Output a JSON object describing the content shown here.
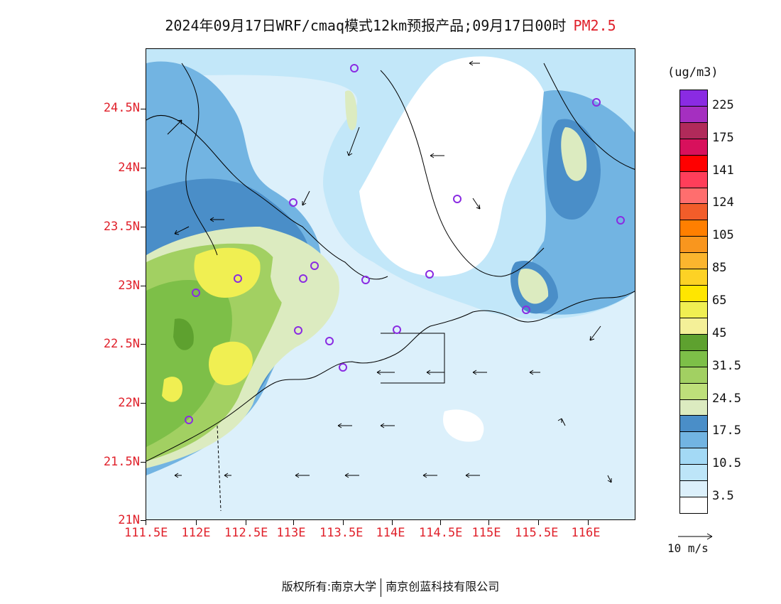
{
  "header": {
    "title": "2024年09月17日WRF/cmaq模式12km预报产品;09月17日00时",
    "pollutant": "PM2.5"
  },
  "axes": {
    "lat_ticks": [
      "24.5N",
      "24N",
      "23.5N",
      "23N",
      "22.5N",
      "22N",
      "21.5N",
      "21N"
    ],
    "lon_ticks": [
      "111.5E",
      "112E",
      "112.5E",
      "113E",
      "113.5E",
      "114E",
      "114.5E",
      "115E",
      "115.5E",
      "116E"
    ]
  },
  "colorbar": {
    "units": "(ug/m3)",
    "colors": [
      "#ffffff",
      "#dcf0fb",
      "#bde5f8",
      "#a3d9f5",
      "#72b4e2",
      "#4a8ec8",
      "#dcebc0",
      "#bedf7a",
      "#a2d062",
      "#7dbf48",
      "#5ea12f",
      "#f4f098",
      "#f0ef52",
      "#ffe600",
      "#fdd225",
      "#fbb52e",
      "#f9961e",
      "#ff7f00",
      "#f25d2a",
      "#ff6e6e",
      "#ff3e5a",
      "#ff0000",
      "#d8105c",
      "#b12a5a",
      "#a52fc0",
      "#8a2be2"
    ],
    "labels": [
      "3.5",
      "10.5",
      "17.5",
      "24.5",
      "31.5",
      "45",
      "65",
      "85",
      "105",
      "124",
      "141",
      "175",
      "225"
    ]
  },
  "wind": {
    "label": "10 m/s"
  },
  "colors": {
    "label_red": "#e0202a",
    "station_marker": "#8a2be2"
  },
  "footer": {
    "left": "版权所有:南京大学",
    "right": "南京创蓝科技有限公司"
  }
}
